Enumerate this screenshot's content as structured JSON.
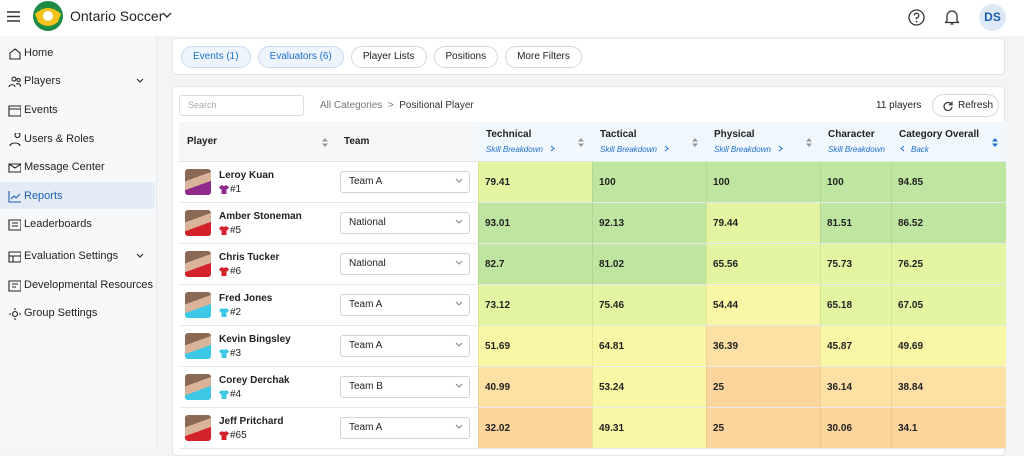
{
  "header": {
    "app_name": "Ontario Soccer",
    "avatar": "DS"
  },
  "sidebar": {
    "items": [
      "Home",
      "Players",
      "Events",
      "Users & Roles",
      "Message Center",
      "Reports",
      "Leaderboards",
      "Evaluation Settings",
      "Developmental Resources",
      "Group Settings"
    ],
    "active": 5
  },
  "filters": [
    "Events (1)",
    "Evaluators (6)",
    "Player Lists",
    "Positions",
    "More Filters"
  ],
  "toolbar": {
    "search_placeholder": "Search",
    "breadcrumb": [
      "All Categories",
      "Positional Player"
    ],
    "separator": ">",
    "count": "11 players",
    "refresh": "Refresh"
  },
  "table": {
    "columns": [
      {
        "label": "Player"
      },
      {
        "label": "Team"
      },
      {
        "label": "Technical",
        "link": "Skill Breakdown"
      },
      {
        "label": "Tactical",
        "link": "Skill Breakdown"
      },
      {
        "label": "Physical",
        "link": "Skill Breakdown"
      },
      {
        "label": "Character",
        "link": "Skill Breakdown"
      },
      {
        "label": "Category Overall",
        "link": "Back"
      }
    ],
    "rows": [
      {
        "name": "Leroy Kuan",
        "number": "#1",
        "jersey_color": "#8e2a8a",
        "team": "Team A",
        "scores": [
          79.41,
          100,
          100,
          100,
          94.85
        ]
      },
      {
        "name": "Amber Stoneman",
        "number": "#5",
        "jersey_color": "#d3222a",
        "team": "National",
        "scores": [
          93.01,
          92.13,
          79.44,
          81.51,
          86.52
        ]
      },
      {
        "name": "Chris Tucker",
        "number": "#6",
        "jersey_color": "#d3222a",
        "team": "National",
        "scores": [
          82.7,
          81.02,
          65.56,
          75.73,
          76.25
        ]
      },
      {
        "name": "Fred Jones",
        "number": "#2",
        "jersey_color": "#3cc8e6",
        "team": "Team A",
        "scores": [
          73.12,
          75.46,
          54.44,
          65.18,
          67.05
        ]
      },
      {
        "name": "Kevin Bingsley",
        "number": "#3",
        "jersey_color": "#3cc8e6",
        "team": "Team A",
        "scores": [
          51.69,
          64.81,
          36.39,
          45.87,
          49.69
        ]
      },
      {
        "name": "Corey Derchak",
        "number": "#4",
        "jersey_color": "#3cc8e6",
        "team": "Team B",
        "scores": [
          40.99,
          53.24,
          25,
          36.14,
          38.84
        ]
      },
      {
        "name": "Jeff Pritchard",
        "number": "#65",
        "jersey_color": "#d3222a",
        "team": "Team A",
        "scores": [
          32.02,
          49.31,
          25,
          30.06,
          34.1
        ]
      }
    ]
  }
}
